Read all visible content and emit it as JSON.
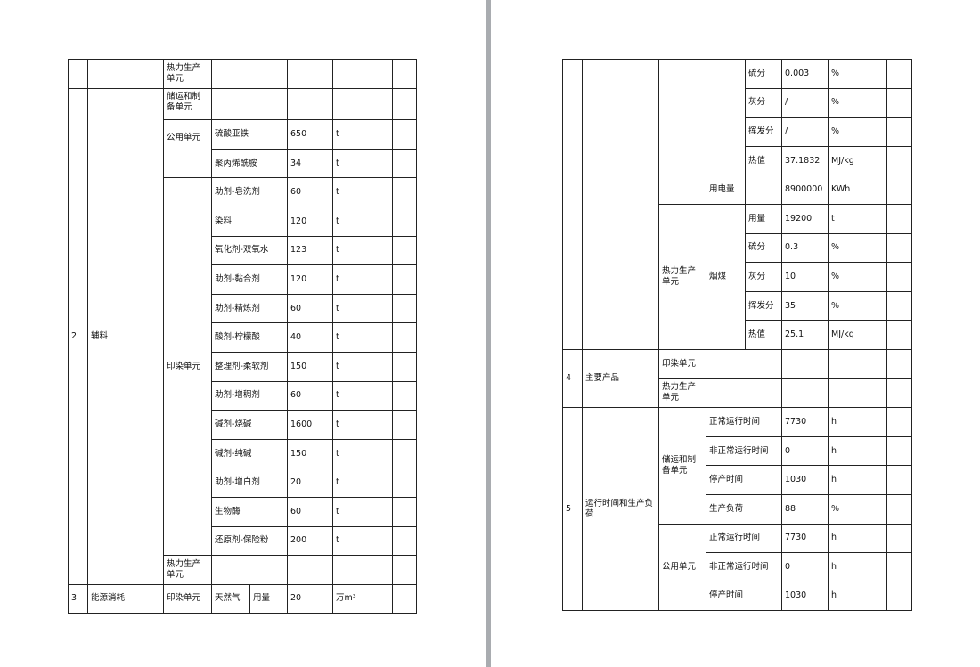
{
  "left": {
    "first_row_unit": "热力生产单元",
    "aux": {
      "no": "2",
      "name": "辅料",
      "storage_unit": "储运和制备单元",
      "public_unit": "公用单元",
      "public_items": [
        {
          "name": "硫酸亚铁",
          "value": "650",
          "unit": "t"
        },
        {
          "name": "聚丙烯酰胺",
          "value": "34",
          "unit": "t"
        }
      ],
      "dyeing_unit": "印染单元",
      "dyeing_items": [
        {
          "name": "助剂-皂洗剂",
          "value": "60",
          "unit": "t"
        },
        {
          "name": "染料",
          "value": "120",
          "unit": "t"
        },
        {
          "name": "氧化剂-双氧水",
          "value": "123",
          "unit": "t"
        },
        {
          "name": "助剂-黏合剂",
          "value": "120",
          "unit": "t"
        },
        {
          "name": "助剂-精炼剂",
          "value": "60",
          "unit": "t"
        },
        {
          "name": "酸剂-柠檬酸",
          "value": "40",
          "unit": "t"
        },
        {
          "name": "整理剂-柔软剂",
          "value": "150",
          "unit": "t"
        },
        {
          "name": "助剂-增稠剂",
          "value": "60",
          "unit": "t"
        },
        {
          "name": "碱剂-烧碱",
          "value": "1600",
          "unit": "t"
        },
        {
          "name": "碱剂-纯碱",
          "value": "150",
          "unit": "t"
        },
        {
          "name": "助剂-增白剂",
          "value": "20",
          "unit": "t"
        },
        {
          "name": "生物酶",
          "value": "60",
          "unit": "t"
        },
        {
          "name": "还原剂-保险粉",
          "value": "200",
          "unit": "t"
        }
      ],
      "heat_unit": "热力生产单元"
    },
    "energy": {
      "no": "3",
      "name": "能源消耗",
      "unit": "印染单元",
      "fuel": "天然气",
      "item": "用量",
      "value": "20",
      "measure": "万m³"
    }
  },
  "right": {
    "gas_items": [
      {
        "name": "硫分",
        "value": "0.003",
        "unit": "%"
      },
      {
        "name": "灰分",
        "value": "/",
        "unit": "%"
      },
      {
        "name": "挥发分",
        "value": "/",
        "unit": "%"
      },
      {
        "name": "热值",
        "value": "37.1832",
        "unit": "MJ/kg"
      }
    ],
    "electricity": {
      "label": "用电量",
      "value": "8900000",
      "unit": "KWh"
    },
    "heat": {
      "unit": "热力生产单元",
      "fuel": "烟煤",
      "items": [
        {
          "name": "用量",
          "value": "19200",
          "unit": "t"
        },
        {
          "name": "硫分",
          "value": "0.3",
          "unit": "%"
        },
        {
          "name": "灰分",
          "value": "10",
          "unit": "%"
        },
        {
          "name": "挥发分",
          "value": "35",
          "unit": "%"
        },
        {
          "name": "热值",
          "value": "25.1",
          "unit": "MJ/kg"
        }
      ]
    },
    "products": {
      "no": "4",
      "name": "主要产品",
      "units": [
        "印染单元",
        "热力生产单元"
      ]
    },
    "runtime": {
      "no": "5",
      "name": "运行时间和生产负荷",
      "storage_unit": "储运和制备单元",
      "storage_items": [
        {
          "name": "正常运行时间",
          "value": "7730",
          "unit": "h"
        },
        {
          "name": "非正常运行时间",
          "value": "0",
          "unit": "h"
        },
        {
          "name": "停产时间",
          "value": "1030",
          "unit": "h"
        },
        {
          "name": "生产负荷",
          "value": "88",
          "unit": "%"
        }
      ],
      "public_unit": "公用单元",
      "public_items": [
        {
          "name": "正常运行时间",
          "value": "7730",
          "unit": "h"
        },
        {
          "name": "非正常运行时间",
          "value": "0",
          "unit": "h"
        },
        {
          "name": "停产时间",
          "value": "1030",
          "unit": "h"
        }
      ]
    }
  }
}
